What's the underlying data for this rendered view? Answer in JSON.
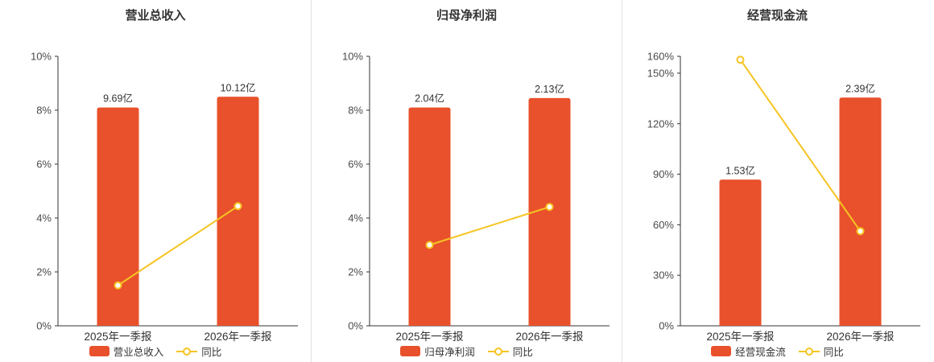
{
  "colors": {
    "background": "#ffffff",
    "bar": "#e8512b",
    "line": "#f6c422",
    "marker_fill": "#ffffff",
    "axis": "#333333",
    "title_text": "#333333",
    "label_text": "#333333",
    "tick_text": "#4a4a4a",
    "divider": "#e2e2e2"
  },
  "chart_data": [
    {
      "type": "bar",
      "title": "营业总收入",
      "categories": [
        "2025年一季报",
        "2026年一季报"
      ],
      "bar_series": {
        "name": "营业总收入",
        "value_labels": [
          "9.69亿",
          "10.12亿"
        ],
        "values_yi": [
          9.69,
          10.12
        ],
        "plot_heights_axis_units": [
          8.1,
          8.5
        ]
      },
      "line_series": {
        "name": "同比",
        "values_pct": [
          1.5,
          4.44
        ]
      },
      "y_axis": {
        "min": 0,
        "max": 10,
        "ticks": [
          0,
          2,
          4,
          6,
          8,
          10
        ],
        "tick_labels": [
          "0%",
          "2%",
          "4%",
          "6%",
          "8%",
          "10%"
        ]
      },
      "legend": [
        "营业总收入",
        "同比"
      ]
    },
    {
      "type": "bar",
      "title": "归母净利润",
      "categories": [
        "2025年一季报",
        "2026年一季报"
      ],
      "bar_series": {
        "name": "归母净利润",
        "value_labels": [
          "2.04亿",
          "2.13亿"
        ],
        "values_yi": [
          2.04,
          2.13
        ],
        "plot_heights_axis_units": [
          8.1,
          8.45
        ]
      },
      "line_series": {
        "name": "同比",
        "values_pct": [
          3.0,
          4.41
        ]
      },
      "y_axis": {
        "min": 0,
        "max": 10,
        "ticks": [
          0,
          2,
          4,
          6,
          8,
          10
        ],
        "tick_labels": [
          "0%",
          "2%",
          "4%",
          "6%",
          "8%",
          "10%"
        ]
      },
      "legend": [
        "归母净利润",
        "同比"
      ]
    },
    {
      "type": "bar",
      "title": "经营现金流",
      "categories": [
        "2025年一季报",
        "2026年一季报"
      ],
      "bar_series": {
        "name": "经营现金流",
        "value_labels": [
          "1.53亿",
          "2.39亿"
        ],
        "values_yi": [
          1.53,
          2.39
        ],
        "plot_heights_axis_units": [
          86.8,
          135.5
        ]
      },
      "line_series": {
        "name": "同比",
        "values_pct": [
          158.0,
          56.2
        ]
      },
      "y_axis": {
        "min": 0,
        "max": 160,
        "ticks": [
          0,
          30,
          60,
          90,
          120,
          150,
          160
        ],
        "tick_labels": [
          "0%",
          "30%",
          "60%",
          "90%",
          "120%",
          "150%",
          "160%"
        ]
      },
      "legend": [
        "经营现金流",
        "同比"
      ]
    }
  ]
}
